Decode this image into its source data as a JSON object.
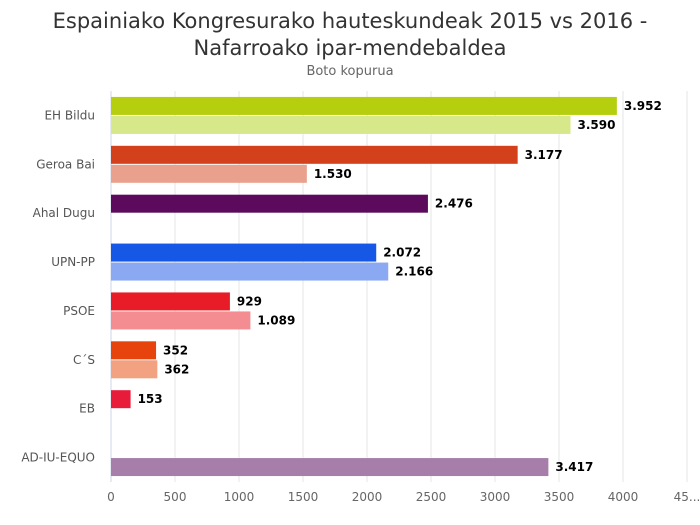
{
  "chart_data": {
    "type": "bar",
    "orientation": "horizontal",
    "title_line1": "Espainiako Kongresurako hauteskundeak 2015 vs 2016 -",
    "title_line2": "Nafarroako ipar-mendebaldea",
    "subtitle": "Boto kopurua",
    "xlim": [
      0,
      4500
    ],
    "ticks": [
      "0",
      "500",
      "1000",
      "1500",
      "2000",
      "2500",
      "3000",
      "3500",
      "4000",
      "45..."
    ],
    "tick_values": [
      0,
      500,
      1000,
      1500,
      2000,
      2500,
      3000,
      3500,
      4000,
      4500
    ],
    "grid": true,
    "legend": "none",
    "categories": [
      {
        "name": "EH Bildu",
        "v2015": 3952,
        "l2015": "3.952",
        "c2015": "#b5cf0e",
        "v2016": 3590,
        "l2016": "3.590",
        "c2016": "#d6e88a"
      },
      {
        "name": "Geroa Bai",
        "v2015": 3177,
        "l2015": "3.177",
        "c2015": "#d3411c",
        "v2016": 1530,
        "l2016": "1.530",
        "c2016": "#e9a08d"
      },
      {
        "name": "Ahal Dugu",
        "v2015": 2476,
        "l2015": "2.476",
        "c2015": "#5b0a5c",
        "v2016": null,
        "l2016": null,
        "c2016": null
      },
      {
        "name": "UPN-PP",
        "v2015": 2072,
        "l2015": "2.072",
        "c2015": "#1657e6",
        "v2016": 2166,
        "l2016": "2.166",
        "c2016": "#8ba9f3"
      },
      {
        "name": "PSOE",
        "v2015": 929,
        "l2015": "929",
        "c2015": "#e81c27",
        "v2016": 1089,
        "l2016": "1.089",
        "c2016": "#f38d92"
      },
      {
        "name": "C´S",
        "v2015": 352,
        "l2015": "352",
        "c2015": "#e6440c",
        "v2016": 362,
        "l2016": "362",
        "c2016": "#f2a181"
      },
      {
        "name": "EB",
        "v2015": 153,
        "l2015": "153",
        "c2015": "#e81c3a",
        "v2016": null,
        "l2016": null,
        "c2016": null
      },
      {
        "name": "AD-IU-EQUO",
        "v2015": null,
        "l2015": null,
        "c2015": null,
        "v2016": 3417,
        "l2016": "3.417",
        "c2016": "#a67ea9"
      }
    ]
  }
}
